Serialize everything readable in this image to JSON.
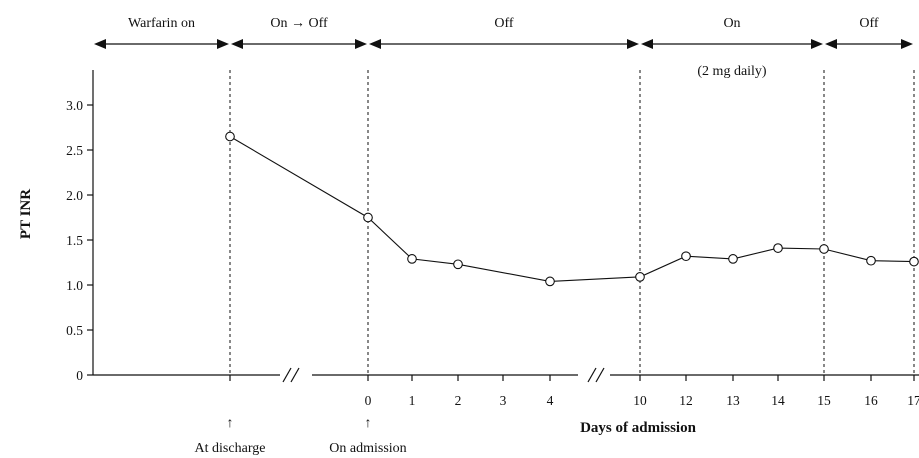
{
  "chart_data": {
    "type": "line",
    "ylabel": "PT INR",
    "xlabel": "Days of admission",
    "ylim": [
      0,
      3.0
    ],
    "yticks": [
      "0",
      "0.5",
      "1.0",
      "1.5",
      "2.0",
      "2.5",
      "3.0"
    ],
    "grid": false,
    "axis_breaks": [
      "between At discharge and day 0",
      "between day 4 and day 10"
    ],
    "x_ticks": [
      "",
      "0",
      "1",
      "2",
      "3",
      "4",
      "10",
      "12",
      "13",
      "14",
      "15",
      "16",
      "17"
    ],
    "points": [
      {
        "x": "At discharge",
        "y": 2.65
      },
      {
        "x": "0",
        "y": 1.75
      },
      {
        "x": "1",
        "y": 1.29
      },
      {
        "x": "2",
        "y": 1.23
      },
      {
        "x": "4",
        "y": 1.04
      },
      {
        "x": "10",
        "y": 1.09
      },
      {
        "x": "12",
        "y": 1.32
      },
      {
        "x": "13",
        "y": 1.29
      },
      {
        "x": "14",
        "y": 1.41
      },
      {
        "x": "15",
        "y": 1.4
      },
      {
        "x": "16",
        "y": 1.27
      },
      {
        "x": "17",
        "y": 1.26
      }
    ],
    "phases": [
      {
        "label": "Warfarin on",
        "from": "start",
        "to": "At discharge"
      },
      {
        "label": "On →  Off",
        "from": "At discharge",
        "to": "0"
      },
      {
        "label": "Off",
        "from": "0",
        "to": "10"
      },
      {
        "label": "On",
        "sublabel": "(2 mg daily)",
        "from": "10",
        "to": "15"
      },
      {
        "label": "Off",
        "from": "15",
        "to": "17"
      }
    ],
    "vertical_dashed_lines_at": [
      "At discharge",
      "0",
      "10",
      "15",
      "17"
    ],
    "annotations": [
      {
        "arrow": "↑",
        "text": "At discharge",
        "at": "At discharge"
      },
      {
        "arrow": "↑",
        "text": "On admission",
        "at": "0"
      }
    ]
  }
}
